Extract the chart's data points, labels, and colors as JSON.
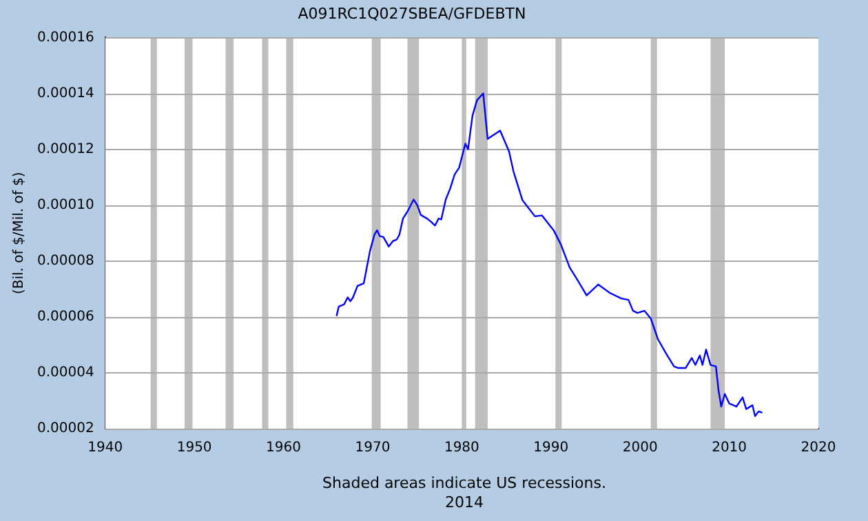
{
  "chart_data": {
    "type": "line",
    "title": "A091RC1Q027SBEA/GFDEBTN",
    "ylabel": "(Bil. of $/Mil. of $)",
    "annotations": [
      "Shaded areas indicate US recessions.",
      "2014"
    ],
    "x": [
      1965.95,
      1966.2,
      1966.8,
      1967.2,
      1967.5,
      1967.8,
      1968.3,
      1969.0,
      1969.3,
      1969.7,
      1970.2,
      1970.5,
      1970.8,
      1971.2,
      1971.8,
      1972.3,
      1972.7,
      1973.0,
      1973.4,
      1973.9,
      1974.6,
      1975.0,
      1975.4,
      1976.1,
      1976.6,
      1977.0,
      1977.4,
      1977.7,
      1978.2,
      1978.7,
      1979.2,
      1979.7,
      1980.4,
      1980.7,
      1981.2,
      1981.7,
      1982.4,
      1982.9,
      1984.3,
      1985.3,
      1985.8,
      1986.8,
      1987.4,
      1988.2,
      1989.0,
      1990.3,
      1991.1,
      1992.1,
      1992.9,
      1994.0,
      1995.3,
      1996.6,
      1997.9,
      1998.7,
      1999.2,
      1999.7,
      2000.5,
      2001.2,
      2002.0,
      2002.9,
      2003.8,
      2004.3,
      2005.1,
      2005.8,
      2006.2,
      2006.7,
      2007.0,
      2007.4,
      2007.9,
      2008.5,
      2008.8,
      2009.1,
      2009.5,
      2010.0,
      2010.8,
      2011.5,
      2011.9,
      2012.6,
      2012.9,
      2013.3,
      2013.7
    ],
    "series": [
      {
        "color": "#0000ff",
        "values": [
          6.03e-05,
          6.37e-05,
          6.45e-05,
          6.7e-05,
          6.56e-05,
          6.7e-05,
          7.11e-05,
          7.2e-05,
          7.69e-05,
          8.36e-05,
          8.94e-05,
          9.1e-05,
          8.89e-05,
          8.86e-05,
          8.52e-05,
          8.72e-05,
          8.77e-05,
          8.94e-05,
          9.52e-05,
          9.77e-05,
          0.000102,
          0.0001,
          9.65e-05,
          9.52e-05,
          9.39e-05,
          9.27e-05,
          9.52e-05,
          9.49e-05,
          0.000102,
          0.000106,
          0.000111,
          0.0001134,
          0.000122,
          0.00012,
          0.000132,
          0.0001375,
          0.00014,
          0.0001237,
          0.0001267,
          0.0001192,
          0.000112,
          0.0001018,
          9.93e-05,
          9.6e-05,
          9.63e-05,
          9.1e-05,
          8.6e-05,
          7.77e-05,
          7.36e-05,
          6.77e-05,
          7.16e-05,
          6.86e-05,
          6.66e-05,
          6.61e-05,
          6.22e-05,
          6.14e-05,
          6.22e-05,
          5.94e-05,
          5.2e-05,
          4.7e-05,
          4.23e-05,
          4.17e-05,
          4.17e-05,
          4.53e-05,
          4.28e-05,
          4.62e-05,
          4.28e-05,
          4.83e-05,
          4.28e-05,
          4.23e-05,
          3.37e-05,
          2.79e-05,
          3.24e-05,
          2.9e-05,
          2.79e-05,
          3.12e-05,
          2.7e-05,
          2.84e-05,
          2.45e-05,
          2.62e-05,
          2.57e-05
        ]
      }
    ],
    "xlim": [
      1940,
      2020
    ],
    "xticks": [
      1940,
      1950,
      1960,
      1970,
      1980,
      1990,
      2000,
      2010,
      2020
    ],
    "ylim": [
      2e-05,
      0.00016
    ],
    "yticks": [
      {
        "value": 2e-05,
        "label": "0.00002"
      },
      {
        "value": 4e-05,
        "label": "0.00004"
      },
      {
        "value": 6e-05,
        "label": "0.00006"
      },
      {
        "value": 8e-05,
        "label": "0.00008"
      },
      {
        "value": 0.0001,
        "label": "0.00010"
      },
      {
        "value": 0.00012,
        "label": "0.00012"
      },
      {
        "value": 0.00014,
        "label": "0.00014"
      },
      {
        "value": 0.00016,
        "label": "0.00016"
      }
    ],
    "grid": "y",
    "legend": false,
    "marker": "none",
    "line_style": "solid",
    "bands": [
      {
        "axis": "x",
        "from": 1945.1,
        "to": 1945.8,
        "color": "#bebebe"
      },
      {
        "axis": "x",
        "from": 1948.9,
        "to": 1949.8,
        "color": "#bebebe"
      },
      {
        "axis": "x",
        "from": 1953.5,
        "to": 1954.4,
        "color": "#bebebe"
      },
      {
        "axis": "x",
        "from": 1957.6,
        "to": 1958.3,
        "color": "#bebebe"
      },
      {
        "axis": "x",
        "from": 1960.3,
        "to": 1961.1,
        "color": "#bebebe"
      },
      {
        "axis": "x",
        "from": 1969.9,
        "to": 1970.9,
        "color": "#bebebe"
      },
      {
        "axis": "x",
        "from": 1973.9,
        "to": 1975.2,
        "color": "#bebebe"
      },
      {
        "axis": "x",
        "from": 1980.0,
        "to": 1980.5,
        "color": "#bebebe"
      },
      {
        "axis": "x",
        "from": 1981.5,
        "to": 1982.9,
        "color": "#bebebe"
      },
      {
        "axis": "x",
        "from": 1990.5,
        "to": 1991.2,
        "color": "#bebebe"
      },
      {
        "axis": "x",
        "from": 2001.2,
        "to": 2001.9,
        "color": "#bebebe"
      },
      {
        "axis": "x",
        "from": 2007.9,
        "to": 2009.5,
        "color": "#bebebe"
      }
    ]
  }
}
